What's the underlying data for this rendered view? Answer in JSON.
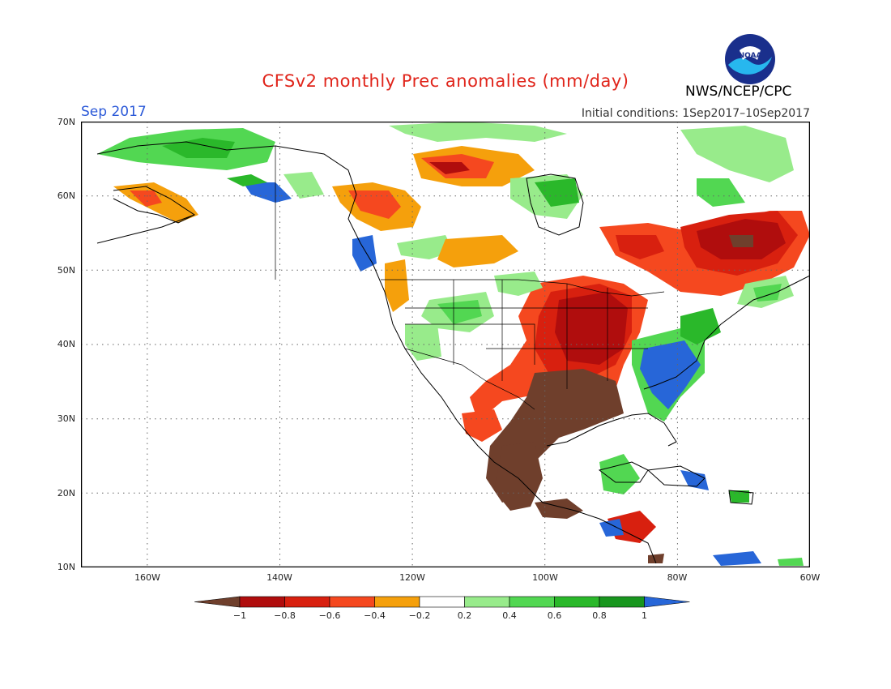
{
  "title": "CFSv2 monthly Prec anomalies (mm/day)",
  "forecast_month": "Sep 2017",
  "initial_conditions": "Initial conditions: 1Sep2017–10Sep2017",
  "organization": "NWS/NCEP/CPC",
  "logo": {
    "text": "NOAA",
    "icon": "noaa-logo-icon"
  },
  "map": {
    "region": "North America",
    "lat_range": [
      10,
      70
    ],
    "lon_range": [
      -170,
      -60
    ],
    "gridlines": "dotted",
    "lat_labels": [
      "70N",
      "60N",
      "50N",
      "40N",
      "30N",
      "20N",
      "10N"
    ],
    "lon_labels": [
      "160W",
      "140W",
      "120W",
      "100W",
      "80W",
      "60W"
    ]
  },
  "legend": {
    "labels": [
      "−1",
      "−0.8",
      "−0.6",
      "−0.4",
      "−0.2",
      "0.2",
      "0.4",
      "0.6",
      "0.8",
      "1"
    ],
    "colors": {
      "below_-1": "#6f3f2c",
      "-1_-0.8": "#b00d0d",
      "-0.8_-0.6": "#d8200f",
      "-0.6_-0.4": "#f5481f",
      "-0.4_-0.2": "#f5a00c",
      "-0.2_0.2": "#ffffff",
      "0.2_0.4": "#98eb8b",
      "0.4_0.6": "#52d752",
      "0.6_0.8": "#2ab82a",
      "0.8_1": "#18961e",
      "above_1": "#2766d8"
    }
  }
}
